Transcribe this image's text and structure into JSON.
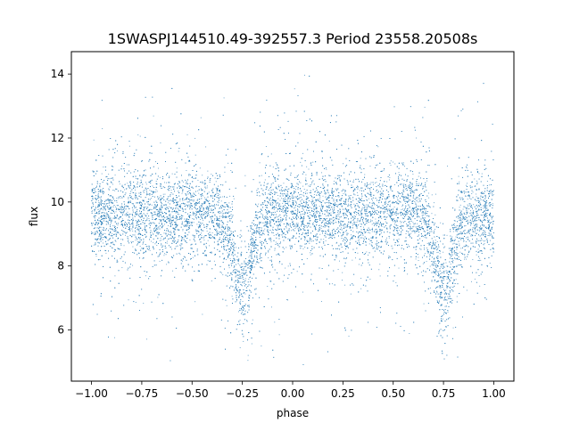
{
  "chart_data": {
    "type": "scatter",
    "title": "1SWASPJ144510.49-392557.3 Period 23558.20508s",
    "xlabel": "phase",
    "ylabel": "flux",
    "xlim": [
      -1.1,
      1.1
    ],
    "ylim": [
      4.4,
      14.7
    ],
    "xticks": [
      -1.0,
      -0.75,
      -0.5,
      -0.25,
      0.0,
      0.25,
      0.5,
      0.75,
      1.0
    ],
    "xtick_labels": [
      "−1.00",
      "−0.75",
      "−0.50",
      "−0.25",
      "0.00",
      "0.25",
      "0.50",
      "0.75",
      "1.00"
    ],
    "yticks": [
      6,
      8,
      10,
      12,
      14
    ],
    "ytick_labels": [
      "6",
      "8",
      "10",
      "12",
      "14"
    ],
    "grid": false,
    "legend": "none",
    "marker_color": "#1f77b4",
    "series": [
      {
        "phase_range": [
          -1.0,
          1.0
        ],
        "baseline_flux": 9.6,
        "flux_range": [
          4.9,
          14.2
        ],
        "eclipses": [
          {
            "phase": -0.25,
            "depth_flux": 7.2
          },
          {
            "phase": 0.75,
            "depth_flux": 7.2
          }
        ]
      }
    ]
  }
}
